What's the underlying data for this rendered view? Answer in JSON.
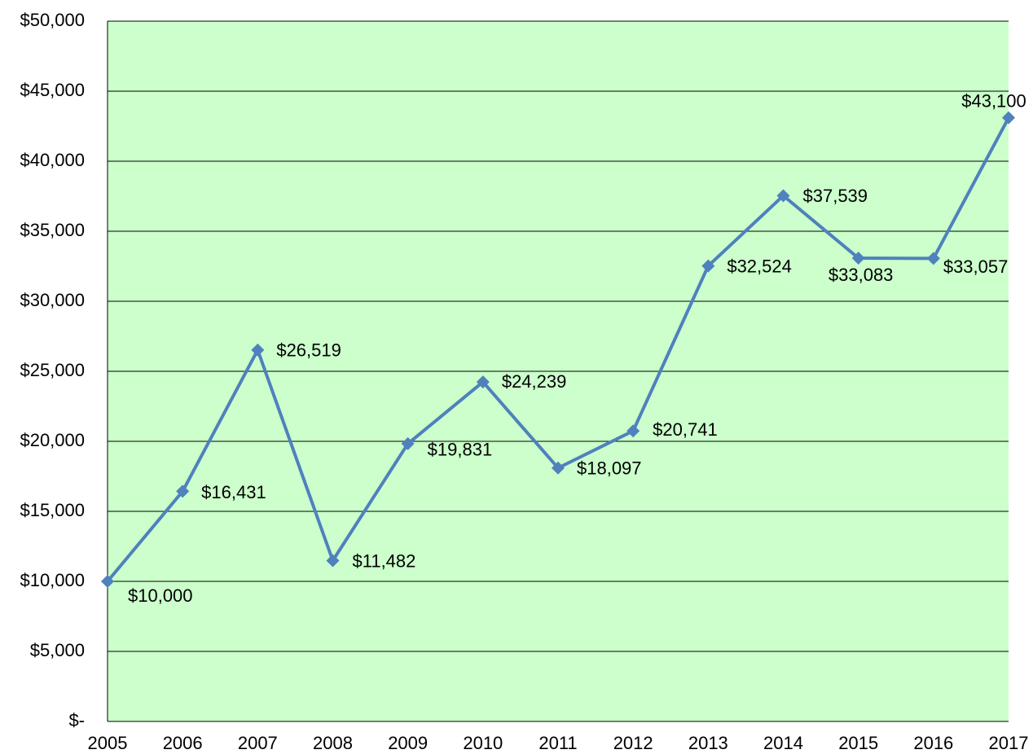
{
  "chart_data": {
    "type": "line",
    "categories": [
      "2005",
      "2006",
      "2007",
      "2008",
      "2009",
      "2010",
      "2011",
      "2012",
      "2013",
      "2014",
      "2015",
      "2016",
      "2017"
    ],
    "series": [
      {
        "color": "#4f81bd",
        "values": [
          10000,
          16431,
          26519,
          11482,
          19831,
          24239,
          18097,
          20741,
          32524,
          37539,
          33083,
          33057,
          43100
        ],
        "value_labels": [
          "$10,000",
          "$16,431",
          "$26,519",
          "$11,482",
          "$19,831",
          "$24,239",
          "$18,097",
          "$20,741",
          "$32,524",
          "$37,539",
          "$33,083",
          "$33,057",
          "$43,100"
        ]
      }
    ],
    "ylim": [
      0,
      50000
    ],
    "yticks": [
      {
        "value": 0,
        "label": "$-"
      },
      {
        "value": 5000,
        "label": "$5,000"
      },
      {
        "value": 10000,
        "label": "$10,000"
      },
      {
        "value": 15000,
        "label": "$15,000"
      },
      {
        "value": 20000,
        "label": "$20,000"
      },
      {
        "value": 25000,
        "label": "$25,000"
      },
      {
        "value": 30000,
        "label": "$30,000"
      },
      {
        "value": 35000,
        "label": "$35,000"
      },
      {
        "value": 40000,
        "label": "$40,000"
      },
      {
        "value": 45000,
        "label": "$45,000"
      },
      {
        "value": 50000,
        "label": "$50,000"
      }
    ],
    "grid": true,
    "plot_background": "#ccffcc"
  }
}
